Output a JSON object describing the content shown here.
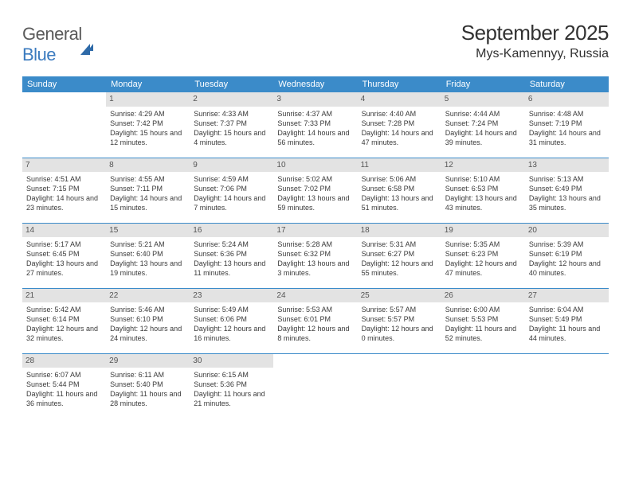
{
  "logo": {
    "text1": "General",
    "text2": "Blue"
  },
  "title": "September 2025",
  "location": "Mys-Kamennyy, Russia",
  "colors": {
    "header_bg": "#3b8bc9",
    "header_text": "#ffffff",
    "daynum_bg": "#e3e3e3",
    "row_border": "#3b8bc9",
    "body_text": "#3a3a3a",
    "logo_blue": "#3b7bbf"
  },
  "day_headers": [
    "Sunday",
    "Monday",
    "Tuesday",
    "Wednesday",
    "Thursday",
    "Friday",
    "Saturday"
  ],
  "weeks": [
    [
      {
        "n": "",
        "sunrise": "",
        "sunset": "",
        "daylight": ""
      },
      {
        "n": "1",
        "sunrise": "Sunrise: 4:29 AM",
        "sunset": "Sunset: 7:42 PM",
        "daylight": "Daylight: 15 hours and 12 minutes."
      },
      {
        "n": "2",
        "sunrise": "Sunrise: 4:33 AM",
        "sunset": "Sunset: 7:37 PM",
        "daylight": "Daylight: 15 hours and 4 minutes."
      },
      {
        "n": "3",
        "sunrise": "Sunrise: 4:37 AM",
        "sunset": "Sunset: 7:33 PM",
        "daylight": "Daylight: 14 hours and 56 minutes."
      },
      {
        "n": "4",
        "sunrise": "Sunrise: 4:40 AM",
        "sunset": "Sunset: 7:28 PM",
        "daylight": "Daylight: 14 hours and 47 minutes."
      },
      {
        "n": "5",
        "sunrise": "Sunrise: 4:44 AM",
        "sunset": "Sunset: 7:24 PM",
        "daylight": "Daylight: 14 hours and 39 minutes."
      },
      {
        "n": "6",
        "sunrise": "Sunrise: 4:48 AM",
        "sunset": "Sunset: 7:19 PM",
        "daylight": "Daylight: 14 hours and 31 minutes."
      }
    ],
    [
      {
        "n": "7",
        "sunrise": "Sunrise: 4:51 AM",
        "sunset": "Sunset: 7:15 PM",
        "daylight": "Daylight: 14 hours and 23 minutes."
      },
      {
        "n": "8",
        "sunrise": "Sunrise: 4:55 AM",
        "sunset": "Sunset: 7:11 PM",
        "daylight": "Daylight: 14 hours and 15 minutes."
      },
      {
        "n": "9",
        "sunrise": "Sunrise: 4:59 AM",
        "sunset": "Sunset: 7:06 PM",
        "daylight": "Daylight: 14 hours and 7 minutes."
      },
      {
        "n": "10",
        "sunrise": "Sunrise: 5:02 AM",
        "sunset": "Sunset: 7:02 PM",
        "daylight": "Daylight: 13 hours and 59 minutes."
      },
      {
        "n": "11",
        "sunrise": "Sunrise: 5:06 AM",
        "sunset": "Sunset: 6:58 PM",
        "daylight": "Daylight: 13 hours and 51 minutes."
      },
      {
        "n": "12",
        "sunrise": "Sunrise: 5:10 AM",
        "sunset": "Sunset: 6:53 PM",
        "daylight": "Daylight: 13 hours and 43 minutes."
      },
      {
        "n": "13",
        "sunrise": "Sunrise: 5:13 AM",
        "sunset": "Sunset: 6:49 PM",
        "daylight": "Daylight: 13 hours and 35 minutes."
      }
    ],
    [
      {
        "n": "14",
        "sunrise": "Sunrise: 5:17 AM",
        "sunset": "Sunset: 6:45 PM",
        "daylight": "Daylight: 13 hours and 27 minutes."
      },
      {
        "n": "15",
        "sunrise": "Sunrise: 5:21 AM",
        "sunset": "Sunset: 6:40 PM",
        "daylight": "Daylight: 13 hours and 19 minutes."
      },
      {
        "n": "16",
        "sunrise": "Sunrise: 5:24 AM",
        "sunset": "Sunset: 6:36 PM",
        "daylight": "Daylight: 13 hours and 11 minutes."
      },
      {
        "n": "17",
        "sunrise": "Sunrise: 5:28 AM",
        "sunset": "Sunset: 6:32 PM",
        "daylight": "Daylight: 13 hours and 3 minutes."
      },
      {
        "n": "18",
        "sunrise": "Sunrise: 5:31 AM",
        "sunset": "Sunset: 6:27 PM",
        "daylight": "Daylight: 12 hours and 55 minutes."
      },
      {
        "n": "19",
        "sunrise": "Sunrise: 5:35 AM",
        "sunset": "Sunset: 6:23 PM",
        "daylight": "Daylight: 12 hours and 47 minutes."
      },
      {
        "n": "20",
        "sunrise": "Sunrise: 5:39 AM",
        "sunset": "Sunset: 6:19 PM",
        "daylight": "Daylight: 12 hours and 40 minutes."
      }
    ],
    [
      {
        "n": "21",
        "sunrise": "Sunrise: 5:42 AM",
        "sunset": "Sunset: 6:14 PM",
        "daylight": "Daylight: 12 hours and 32 minutes."
      },
      {
        "n": "22",
        "sunrise": "Sunrise: 5:46 AM",
        "sunset": "Sunset: 6:10 PM",
        "daylight": "Daylight: 12 hours and 24 minutes."
      },
      {
        "n": "23",
        "sunrise": "Sunrise: 5:49 AM",
        "sunset": "Sunset: 6:06 PM",
        "daylight": "Daylight: 12 hours and 16 minutes."
      },
      {
        "n": "24",
        "sunrise": "Sunrise: 5:53 AM",
        "sunset": "Sunset: 6:01 PM",
        "daylight": "Daylight: 12 hours and 8 minutes."
      },
      {
        "n": "25",
        "sunrise": "Sunrise: 5:57 AM",
        "sunset": "Sunset: 5:57 PM",
        "daylight": "Daylight: 12 hours and 0 minutes."
      },
      {
        "n": "26",
        "sunrise": "Sunrise: 6:00 AM",
        "sunset": "Sunset: 5:53 PM",
        "daylight": "Daylight: 11 hours and 52 minutes."
      },
      {
        "n": "27",
        "sunrise": "Sunrise: 6:04 AM",
        "sunset": "Sunset: 5:49 PM",
        "daylight": "Daylight: 11 hours and 44 minutes."
      }
    ],
    [
      {
        "n": "28",
        "sunrise": "Sunrise: 6:07 AM",
        "sunset": "Sunset: 5:44 PM",
        "daylight": "Daylight: 11 hours and 36 minutes."
      },
      {
        "n": "29",
        "sunrise": "Sunrise: 6:11 AM",
        "sunset": "Sunset: 5:40 PM",
        "daylight": "Daylight: 11 hours and 28 minutes."
      },
      {
        "n": "30",
        "sunrise": "Sunrise: 6:15 AM",
        "sunset": "Sunset: 5:36 PM",
        "daylight": "Daylight: 11 hours and 21 minutes."
      },
      {
        "n": "",
        "sunrise": "",
        "sunset": "",
        "daylight": ""
      },
      {
        "n": "",
        "sunrise": "",
        "sunset": "",
        "daylight": ""
      },
      {
        "n": "",
        "sunrise": "",
        "sunset": "",
        "daylight": ""
      },
      {
        "n": "",
        "sunrise": "",
        "sunset": "",
        "daylight": ""
      }
    ]
  ]
}
